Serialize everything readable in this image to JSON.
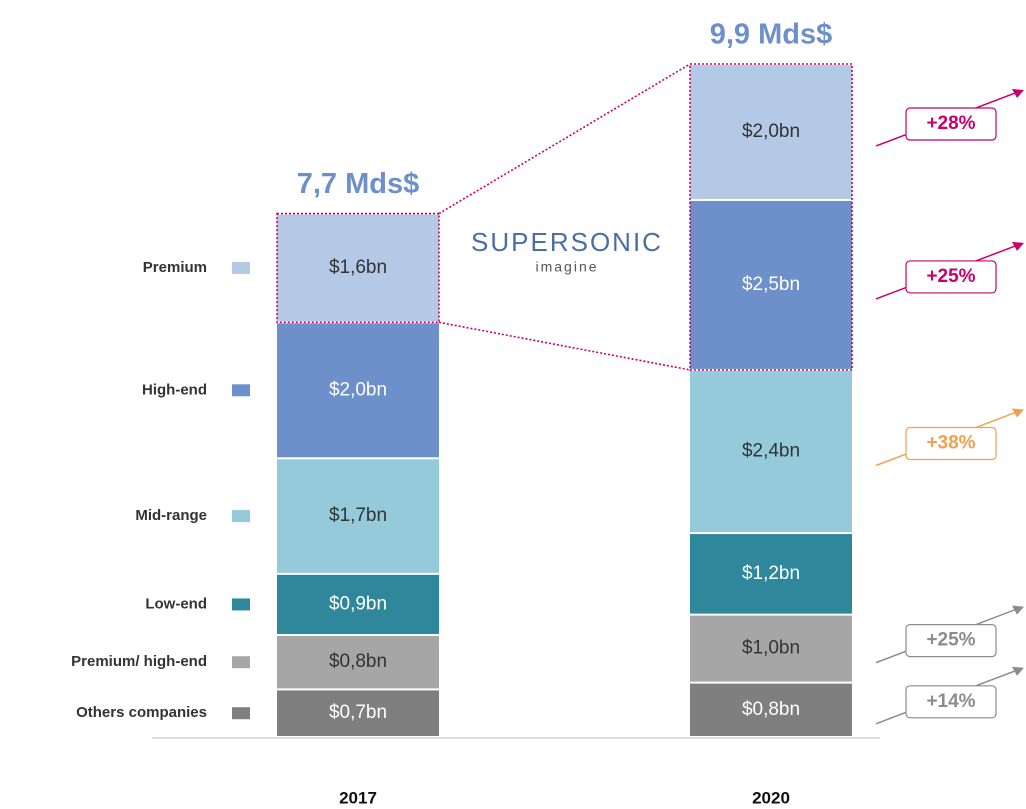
{
  "chart_data": {
    "type": "stacked_bar",
    "categories": [
      "2017",
      "2020"
    ],
    "totals": [
      7.7,
      9.9
    ],
    "total_labels": [
      "7,7 Mds$",
      "9,9 Mds$"
    ],
    "logo": {
      "name": "SUPERSONIC",
      "tagline": "imagine"
    },
    "series": [
      {
        "name": "Others companies",
        "color": "#7f7f7f",
        "text_color": "#ffffff",
        "values": [
          0.7,
          0.8
        ],
        "value_labels": [
          "$0,7bn",
          "$0,8bn"
        ],
        "growth": 14,
        "growth_label": "+14%",
        "growth_color": "#8c8c8c"
      },
      {
        "name": "Premium/ high-end",
        "color": "#a6a6a6",
        "text_color": "#333333",
        "values": [
          0.8,
          1.0
        ],
        "value_labels": [
          "$0,8bn",
          "$1,0bn"
        ],
        "growth": 25,
        "growth_label": "+25%",
        "growth_color": "#8c8c8c"
      },
      {
        "name": "Low-end",
        "color": "#2e879b",
        "text_color": "#ffffff",
        "values": [
          0.9,
          1.2
        ],
        "value_labels": [
          "$0,9bn",
          "$1,2bn"
        ],
        "growth": null,
        "growth_label": null,
        "growth_color": null
      },
      {
        "name": "Mid-range",
        "color": "#94cad9",
        "text_color": "#333333",
        "values": [
          1.7,
          2.4
        ],
        "value_labels": [
          "$1,7bn",
          "$2,4bn"
        ],
        "growth": 38,
        "growth_label": "+38%",
        "growth_color": "#f0a050"
      },
      {
        "name": "High-end",
        "color": "#6d8fca",
        "text_color": "#ffffff",
        "values": [
          2.0,
          2.5
        ],
        "value_labels": [
          "$2,0bn",
          "$2,5bn"
        ],
        "growth": 25,
        "growth_label": "+25%",
        "growth_color": "#c8006e"
      },
      {
        "name": "Premium",
        "color": "#b4c9e6",
        "text_color": "#333333",
        "values": [
          1.6,
          2.0
        ],
        "value_labels": [
          "$1,6bn",
          "$2,0bn"
        ],
        "growth": 28,
        "growth_label": "+28%",
        "growth_color": "#c8006e"
      }
    ]
  }
}
